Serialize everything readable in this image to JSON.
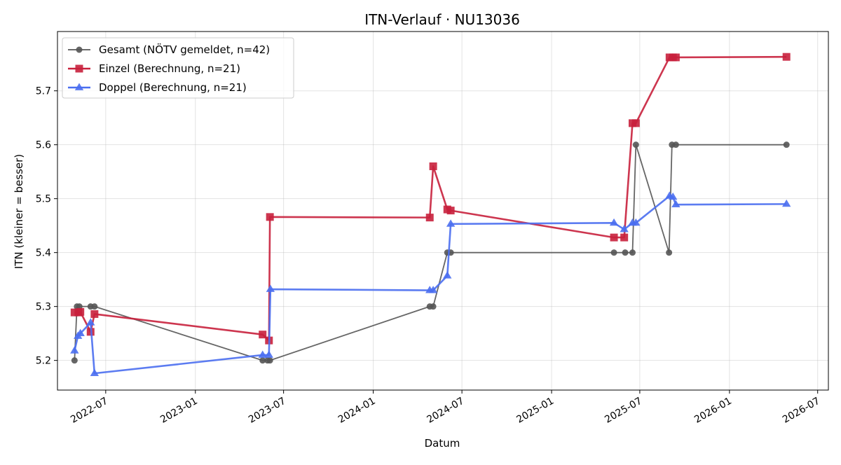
{
  "chart_data": {
    "type": "line",
    "title": "ITN-Verlauf · NU13036",
    "xlabel": "Datum",
    "ylabel": "ITN  (kleiner = besser)",
    "x_is_date": true,
    "xlim": [
      "2022-03-24",
      "2026-07-23"
    ],
    "ylim": [
      5.145,
      5.81
    ],
    "x_ticks": [
      "2022-07",
      "2023-01",
      "2023-07",
      "2024-01",
      "2024-07",
      "2025-01",
      "2025-07",
      "2026-01",
      "2026-07"
    ],
    "y_ticks": [
      5.2,
      5.3,
      5.4,
      5.5,
      5.6,
      5.7
    ],
    "grid": true,
    "legend_position": "upper-left",
    "series": [
      {
        "name": "Gesamt (NÖTV gemeldet, n=42)",
        "color": "#555555",
        "marker": "circle",
        "points": [
          [
            "2022-04-28",
            5.2
          ],
          [
            "2022-05-03",
            5.3
          ],
          [
            "2022-05-08",
            5.3
          ],
          [
            "2022-05-31",
            5.3
          ],
          [
            "2022-06-08",
            5.3
          ],
          [
            "2023-05-19",
            5.2
          ],
          [
            "2023-05-29",
            5.2
          ],
          [
            "2023-06-03",
            5.2
          ],
          [
            "2024-04-26",
            5.3
          ],
          [
            "2024-05-03",
            5.3
          ],
          [
            "2024-06-01",
            5.4
          ],
          [
            "2024-06-08",
            5.4
          ],
          [
            "2025-05-09",
            5.4
          ],
          [
            "2025-06-01",
            5.4
          ],
          [
            "2025-06-16",
            5.4
          ],
          [
            "2025-06-23",
            5.6
          ],
          [
            "2025-08-30",
            5.4
          ],
          [
            "2025-09-05",
            5.6
          ],
          [
            "2025-09-13",
            5.6
          ],
          [
            "2026-04-28",
            5.6
          ]
        ]
      },
      {
        "name": "Einzel (Berechnung, n=21)",
        "color": "#c8203c",
        "marker": "square",
        "points": [
          [
            "2022-04-28",
            5.289
          ],
          [
            "2022-05-06",
            5.289
          ],
          [
            "2022-05-10",
            5.29
          ],
          [
            "2022-05-31",
            5.253
          ],
          [
            "2022-06-08",
            5.286
          ],
          [
            "2023-05-19",
            5.248
          ],
          [
            "2023-06-01",
            5.237
          ],
          [
            "2023-06-03",
            5.466
          ],
          [
            "2024-04-26",
            5.465
          ],
          [
            "2024-05-03",
            5.56
          ],
          [
            "2024-06-01",
            5.48
          ],
          [
            "2024-06-08",
            5.478
          ],
          [
            "2025-05-09",
            5.428
          ],
          [
            "2025-05-30",
            5.428
          ],
          [
            "2025-06-16",
            5.64
          ],
          [
            "2025-06-23",
            5.64
          ],
          [
            "2025-08-31",
            5.762
          ],
          [
            "2025-09-07",
            5.762
          ],
          [
            "2025-09-13",
            5.762
          ],
          [
            "2026-04-28",
            5.763
          ]
        ]
      },
      {
        "name": "Doppel (Berechnung, n=21)",
        "color": "#4a6ef0",
        "marker": "triangle",
        "points": [
          [
            "2022-04-28",
            5.218
          ],
          [
            "2022-05-05",
            5.245
          ],
          [
            "2022-05-10",
            5.25
          ],
          [
            "2022-05-31",
            5.27
          ],
          [
            "2022-06-08",
            5.176
          ],
          [
            "2023-05-19",
            5.21
          ],
          [
            "2023-06-01",
            5.21
          ],
          [
            "2023-06-04",
            5.332
          ],
          [
            "2024-04-26",
            5.33
          ],
          [
            "2024-05-03",
            5.33
          ],
          [
            "2024-06-01",
            5.357
          ],
          [
            "2024-06-08",
            5.453
          ],
          [
            "2025-05-09",
            5.455
          ],
          [
            "2025-05-30",
            5.443
          ],
          [
            "2025-06-16",
            5.455
          ],
          [
            "2025-06-23",
            5.455
          ],
          [
            "2025-08-31",
            5.505
          ],
          [
            "2025-09-07",
            5.503
          ],
          [
            "2025-09-13",
            5.489
          ],
          [
            "2026-04-28",
            5.49
          ]
        ]
      }
    ]
  }
}
